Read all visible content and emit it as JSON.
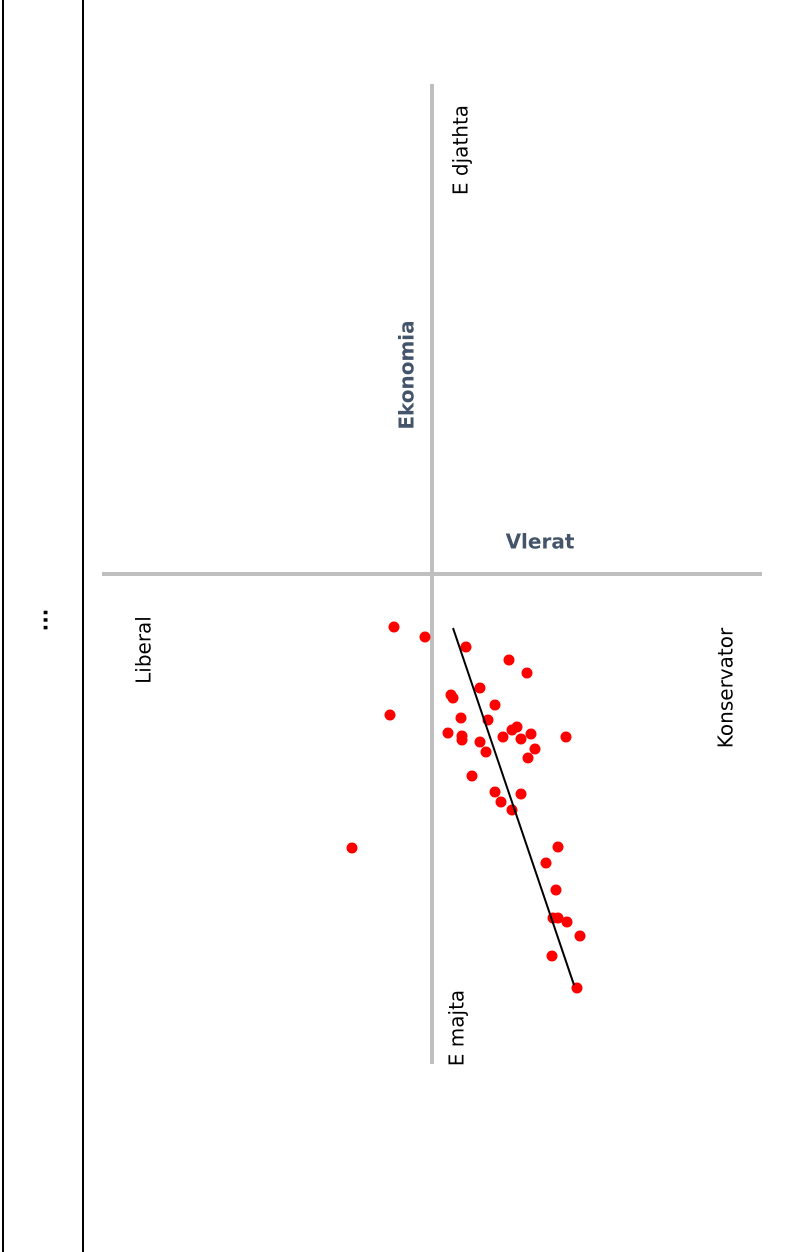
{
  "menu_label": "...",
  "chart_data": {
    "type": "scatter",
    "x_axis_label": "Vlerat",
    "y_axis_label": "Ekonomia",
    "x_left_label": "Liberal",
    "x_right_label": "Konservator",
    "y_top_label": "E djathta",
    "y_bottom_label": "E majta",
    "xlim": [
      -33,
      33
    ],
    "ylim": [
      -49,
      49
    ],
    "axis_color": "#bfbfbf",
    "color": "#ff0000",
    "x": [
      -3.8,
      -0.7,
      3.4,
      7.7,
      9.5,
      4.8,
      1.9,
      2.1,
      6.3,
      -4.2,
      2.9,
      5.6,
      8.5,
      8.0,
      9.9,
      7.1,
      1.6,
      3.0,
      3.0,
      4.8,
      8.9,
      13.4,
      10.3,
      5.4,
      9.6,
      4.0,
      6.3,
      8.9,
      6.9,
      8.0,
      12.6,
      -8.0,
      11.4,
      12.4,
      12.1,
      12.6,
      13.5,
      14.8,
      12.0,
      14.5
    ],
    "y": [
      -5.3,
      -6.3,
      -7.3,
      -8.6,
      -9.9,
      -11.4,
      -12.1,
      -12.4,
      -13.1,
      -14.1,
      -14.4,
      -14.6,
      -15.3,
      -15.6,
      -16.0,
      -16.3,
      -15.9,
      -16.2,
      -16.6,
      -16.8,
      -16.5,
      -16.3,
      -17.5,
      -17.8,
      -18.4,
      -20.2,
      -21.8,
      -22.0,
      -22.8,
      -23.6,
      -27.3,
      -27.4,
      -28.9,
      -31.6,
      -34.4,
      -34.4,
      -34.8,
      -36.2,
      -38.2,
      -41.4
    ],
    "trend_line": {
      "x": [
        2.1,
        14.2
      ],
      "y": [
        -5.4,
        -41.1
      ],
      "color": "#000000"
    }
  }
}
